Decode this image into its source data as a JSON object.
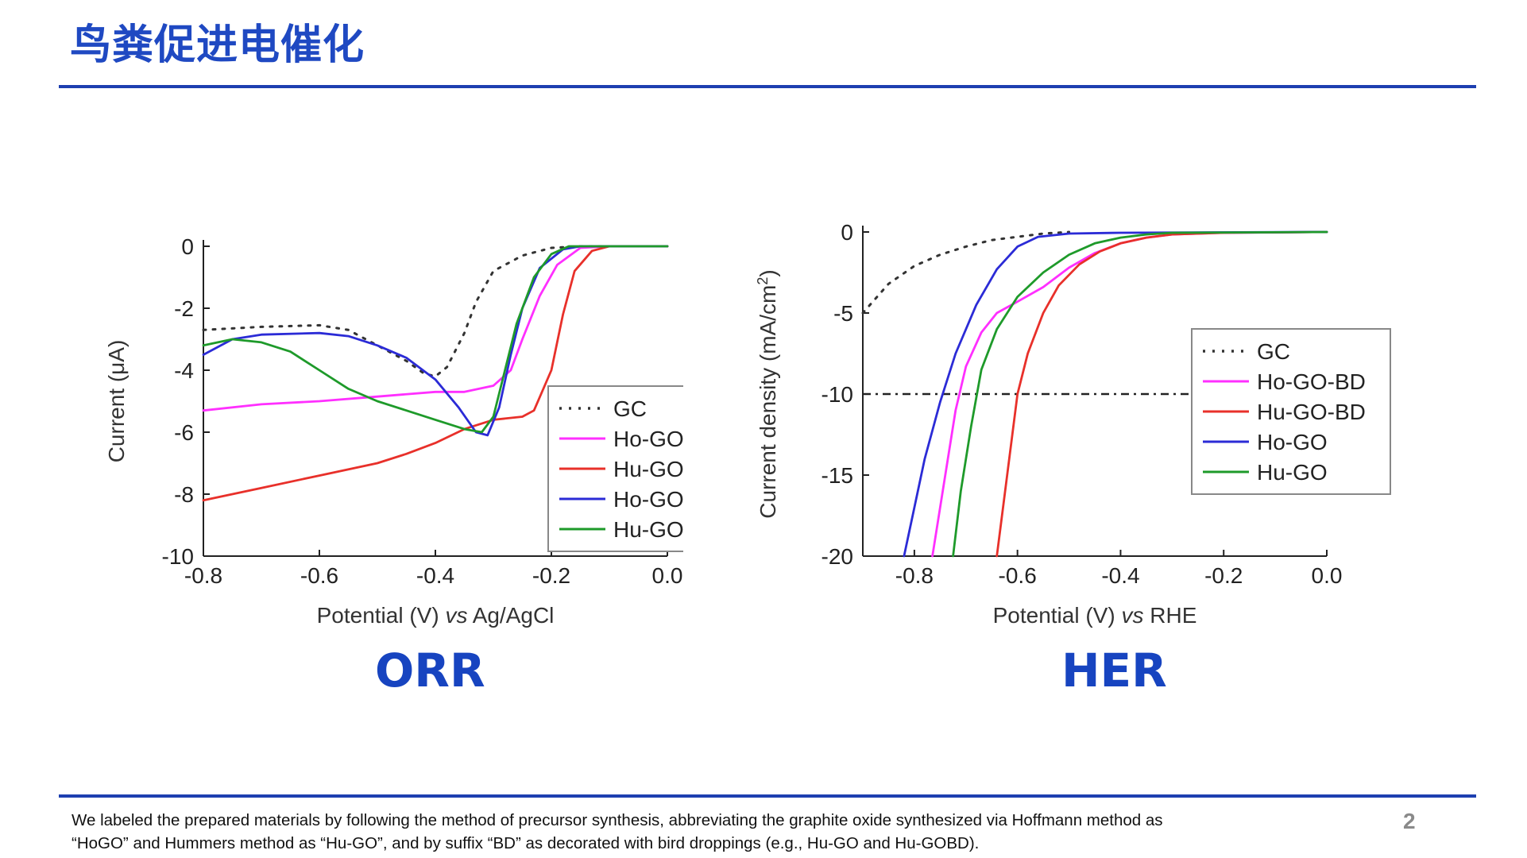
{
  "slide": {
    "title": "鸟粪促进电催化",
    "footnote_line1": "We labeled the prepared materials by following the method of precursor synthesis, abbreviating the graphite oxide synthesized via Hoffmann method as",
    "footnote_line2": "“HoGO” and Hummers method as “Hu-GO”, and by suffix “BD” as decorated with bird droppings (e.g., Hu-GO and Hu-GOBD).",
    "page_number": "2",
    "accent_color": "#1f49c2"
  },
  "chart_data": [
    {
      "id": "orr",
      "type": "line",
      "panel_label": "ORR",
      "xlabel_main": "Potential (V) ",
      "xlabel_italic": "vs",
      "xlabel_tail": " Ag/AgCl",
      "ylabel": "Current (μA)",
      "xlim": [
        -0.8,
        0.0
      ],
      "ylim": [
        -10,
        0
      ],
      "xticks": [
        -0.8,
        -0.6,
        -0.4,
        -0.2,
        0.0
      ],
      "xtick_labels": [
        "-0.8",
        "-0.6",
        "-0.4",
        "-0.2",
        "0.0"
      ],
      "yticks": [
        0,
        -2,
        -4,
        -6,
        -8,
        -10
      ],
      "ytick_labels": [
        "0",
        "-2",
        "-4",
        "-6",
        "-8",
        "-10"
      ],
      "legend_position": "lower-right",
      "series": [
        {
          "name": "GC",
          "color": "#333333",
          "style": "dotted",
          "points": [
            [
              -0.8,
              -2.7
            ],
            [
              -0.7,
              -2.6
            ],
            [
              -0.6,
              -2.55
            ],
            [
              -0.55,
              -2.7
            ],
            [
              -0.5,
              -3.2
            ],
            [
              -0.45,
              -3.7
            ],
            [
              -0.42,
              -4.1
            ],
            [
              -0.4,
              -4.2
            ],
            [
              -0.38,
              -3.9
            ],
            [
              -0.35,
              -2.8
            ],
            [
              -0.33,
              -1.8
            ],
            [
              -0.3,
              -0.8
            ],
            [
              -0.25,
              -0.3
            ],
            [
              -0.2,
              -0.05
            ],
            [
              -0.15,
              0
            ],
            [
              0,
              0
            ]
          ]
        },
        {
          "name": "Ho-GO-BD",
          "color": "#ff2fff",
          "style": "solid",
          "points": [
            [
              -0.8,
              -5.3
            ],
            [
              -0.7,
              -5.1
            ],
            [
              -0.6,
              -5.0
            ],
            [
              -0.5,
              -4.85
            ],
            [
              -0.4,
              -4.7
            ],
            [
              -0.35,
              -4.7
            ],
            [
              -0.3,
              -4.5
            ],
            [
              -0.27,
              -4.0
            ],
            [
              -0.25,
              -3.0
            ],
            [
              -0.22,
              -1.6
            ],
            [
              -0.19,
              -0.6
            ],
            [
              -0.15,
              -0.05
            ],
            [
              -0.1,
              0
            ],
            [
              0,
              0
            ]
          ]
        },
        {
          "name": "Hu-GO-BD",
          "color": "#e8302a",
          "style": "solid",
          "points": [
            [
              -0.8,
              -8.2
            ],
            [
              -0.7,
              -7.8
            ],
            [
              -0.6,
              -7.4
            ],
            [
              -0.5,
              -7.0
            ],
            [
              -0.45,
              -6.7
            ],
            [
              -0.4,
              -6.35
            ],
            [
              -0.35,
              -5.9
            ],
            [
              -0.3,
              -5.6
            ],
            [
              -0.25,
              -5.5
            ],
            [
              -0.23,
              -5.3
            ],
            [
              -0.2,
              -4.0
            ],
            [
              -0.18,
              -2.2
            ],
            [
              -0.16,
              -0.8
            ],
            [
              -0.13,
              -0.15
            ],
            [
              -0.1,
              0
            ],
            [
              0,
              0
            ]
          ]
        },
        {
          "name": "Ho-GO",
          "color": "#2b2bd6",
          "style": "solid",
          "points": [
            [
              -0.8,
              -3.5
            ],
            [
              -0.75,
              -3.0
            ],
            [
              -0.7,
              -2.85
            ],
            [
              -0.6,
              -2.8
            ],
            [
              -0.55,
              -2.9
            ],
            [
              -0.5,
              -3.2
            ],
            [
              -0.45,
              -3.6
            ],
            [
              -0.4,
              -4.3
            ],
            [
              -0.36,
              -5.2
            ],
            [
              -0.33,
              -6.0
            ],
            [
              -0.31,
              -6.1
            ],
            [
              -0.29,
              -5.2
            ],
            [
              -0.27,
              -3.5
            ],
            [
              -0.25,
              -2.0
            ],
            [
              -0.22,
              -0.7
            ],
            [
              -0.18,
              -0.1
            ],
            [
              -0.15,
              0
            ],
            [
              0,
              0
            ]
          ]
        },
        {
          "name": "Hu-GO",
          "color": "#1e9a2a",
          "style": "solid",
          "points": [
            [
              -0.8,
              -3.2
            ],
            [
              -0.75,
              -3.0
            ],
            [
              -0.7,
              -3.1
            ],
            [
              -0.65,
              -3.4
            ],
            [
              -0.6,
              -4.0
            ],
            [
              -0.55,
              -4.6
            ],
            [
              -0.5,
              -5.0
            ],
            [
              -0.45,
              -5.3
            ],
            [
              -0.4,
              -5.6
            ],
            [
              -0.35,
              -5.9
            ],
            [
              -0.32,
              -6.0
            ],
            [
              -0.3,
              -5.5
            ],
            [
              -0.28,
              -4.0
            ],
            [
              -0.26,
              -2.5
            ],
            [
              -0.23,
              -1.0
            ],
            [
              -0.2,
              -0.25
            ],
            [
              -0.17,
              0
            ],
            [
              0,
              0
            ]
          ]
        }
      ]
    },
    {
      "id": "her",
      "type": "line",
      "panel_label": "HER",
      "xlabel_main": "Potential (V) ",
      "xlabel_italic": "vs",
      "xlabel_tail": " RHE",
      "ylabel_main": "Current density (mA/cm",
      "ylabel_sup": "2",
      "ylabel_tail": ")",
      "xlim": [
        -0.9,
        0.0
      ],
      "ylim": [
        -20,
        0
      ],
      "xticks": [
        -0.8,
        -0.6,
        -0.4,
        -0.2,
        0.0
      ],
      "xtick_labels": [
        "-0.8",
        "-0.6",
        "-0.4",
        "-0.2",
        "0.0"
      ],
      "yticks": [
        0,
        -5,
        -10,
        -15,
        -20
      ],
      "ytick_labels": [
        "0",
        "-5",
        "-10",
        "-15",
        "-20"
      ],
      "reference_line": {
        "y": -10,
        "x_start": -0.9,
        "x_end": -0.2,
        "style": "dash-dot"
      },
      "legend_position": "upper-right",
      "series": [
        {
          "name": "GC",
          "color": "#333333",
          "style": "dotted",
          "points": [
            [
              -0.9,
              -5.0
            ],
            [
              -0.85,
              -3.2
            ],
            [
              -0.8,
              -2.1
            ],
            [
              -0.75,
              -1.4
            ],
            [
              -0.7,
              -0.9
            ],
            [
              -0.65,
              -0.5
            ],
            [
              -0.6,
              -0.3
            ],
            [
              -0.55,
              -0.1
            ],
            [
              -0.5,
              0
            ]
          ]
        },
        {
          "name": "Ho-GO-BD",
          "color": "#ff2fff",
          "style": "solid",
          "points": [
            [
              -0.765,
              -20
            ],
            [
              -0.74,
              -15
            ],
            [
              -0.72,
              -11
            ],
            [
              -0.7,
              -8.3
            ],
            [
              -0.67,
              -6.2
            ],
            [
              -0.64,
              -5.0
            ],
            [
              -0.6,
              -4.3
            ],
            [
              -0.55,
              -3.4
            ],
            [
              -0.5,
              -2.2
            ],
            [
              -0.45,
              -1.3
            ],
            [
              -0.4,
              -0.7
            ],
            [
              -0.35,
              -0.35
            ],
            [
              -0.3,
              -0.15
            ],
            [
              -0.2,
              -0.05
            ],
            [
              0,
              0
            ]
          ]
        },
        {
          "name": "Hu-GO-BD",
          "color": "#e8302a",
          "style": "solid",
          "points": [
            [
              -0.64,
              -20
            ],
            [
              -0.62,
              -15
            ],
            [
              -0.6,
              -10
            ],
            [
              -0.58,
              -7.5
            ],
            [
              -0.55,
              -5.0
            ],
            [
              -0.52,
              -3.3
            ],
            [
              -0.48,
              -2.0
            ],
            [
              -0.44,
              -1.2
            ],
            [
              -0.4,
              -0.7
            ],
            [
              -0.35,
              -0.35
            ],
            [
              -0.3,
              -0.15
            ],
            [
              -0.2,
              -0.05
            ],
            [
              0,
              0
            ]
          ]
        },
        {
          "name": "Ho-GO",
          "color": "#2b2bd6",
          "style": "solid",
          "points": [
            [
              -0.82,
              -20
            ],
            [
              -0.8,
              -17
            ],
            [
              -0.78,
              -14
            ],
            [
              -0.75,
              -10.5
            ],
            [
              -0.72,
              -7.5
            ],
            [
              -0.68,
              -4.5
            ],
            [
              -0.64,
              -2.3
            ],
            [
              -0.6,
              -0.9
            ],
            [
              -0.56,
              -0.3
            ],
            [
              -0.5,
              -0.1
            ],
            [
              -0.4,
              -0.05
            ],
            [
              0,
              0
            ]
          ]
        },
        {
          "name": "Hu-GO",
          "color": "#1e9a2a",
          "style": "solid",
          "points": [
            [
              -0.725,
              -20
            ],
            [
              -0.71,
              -16
            ],
            [
              -0.69,
              -12
            ],
            [
              -0.67,
              -8.5
            ],
            [
              -0.64,
              -6.0
            ],
            [
              -0.6,
              -4.0
            ],
            [
              -0.55,
              -2.5
            ],
            [
              -0.5,
              -1.4
            ],
            [
              -0.45,
              -0.7
            ],
            [
              -0.4,
              -0.35
            ],
            [
              -0.35,
              -0.15
            ],
            [
              -0.3,
              -0.05
            ],
            [
              0,
              0
            ]
          ]
        }
      ]
    }
  ]
}
